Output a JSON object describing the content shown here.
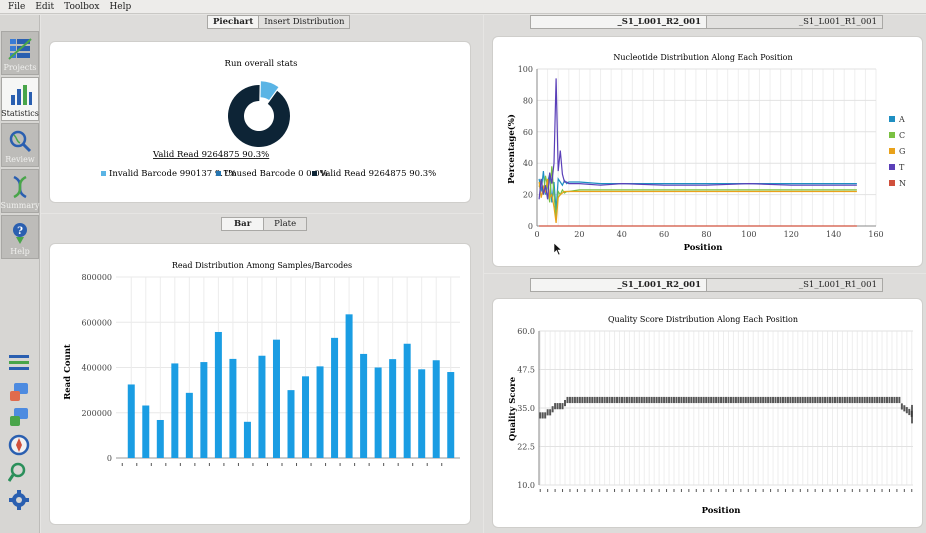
{
  "menu": [
    "File",
    "Edit",
    "Toolbox",
    "Help"
  ],
  "sidebar": {
    "buttons": [
      {
        "label": "Projects",
        "icon": "projects-icon",
        "active": false
      },
      {
        "label": "Statistics",
        "icon": "statistics-icon",
        "active": true
      },
      {
        "label": "Review",
        "icon": "review-icon",
        "active": false
      },
      {
        "label": "Summary",
        "icon": "summary-icon",
        "active": false
      },
      {
        "label": "Help",
        "icon": "help-icon",
        "active": false
      }
    ],
    "tools": [
      "list-icon",
      "tag-icon",
      "tag-edit-icon",
      "compass-icon",
      "magnifier-icon",
      "settings-icon"
    ]
  },
  "top_left": {
    "tabs": [
      {
        "label": "Piechart",
        "active": true
      },
      {
        "label": "Insert Distribution",
        "active": false
      }
    ],
    "title": "Run overall stats",
    "center_label": "Valid Read 9264875 90.3%",
    "legend": [
      {
        "label": "Invalid Barcode 990137 9.7%",
        "color": "#5ab4e5"
      },
      {
        "label": "Unused Barcode 0 0.0%",
        "color": "#2675b0"
      },
      {
        "label": "Valid Read 9264875 90.3%",
        "color": "#0d2436"
      }
    ]
  },
  "bottom_left": {
    "tabs": [
      {
        "label": "Bar",
        "active": true
      },
      {
        "label": "Plate",
        "active": false
      }
    ]
  },
  "top_right": {
    "tabs": [
      {
        "label": "_S1_L001_R2_001",
        "active": true
      },
      {
        "label": "_S1_L001_R1_001",
        "active": false
      }
    ]
  },
  "bottom_right": {
    "tabs": [
      {
        "label": "_S1_L001_R2_001",
        "active": true
      },
      {
        "label": "_S1_L001_R1_001",
        "active": false
      }
    ]
  },
  "colors": {
    "bar": "#1a9de3",
    "panel_bg": "#dddcda"
  },
  "chart_data": [
    {
      "type": "pie",
      "title": "Run overall stats",
      "categories": [
        "Invalid Barcode",
        "Unused Barcode",
        "Valid Read"
      ],
      "values": [
        990137,
        0,
        9264875
      ],
      "percent": [
        9.7,
        0.0,
        90.3
      ]
    },
    {
      "type": "line",
      "title": "Nucleotide Distribution Along Each Position",
      "xlabel": "Position",
      "ylabel": "Percentage(%)",
      "xlim": [
        0,
        160
      ],
      "ylim": [
        0,
        100
      ],
      "xticks": [
        0,
        20,
        40,
        60,
        80,
        100,
        120,
        140,
        160
      ],
      "yticks": [
        0,
        20,
        40,
        60,
        80,
        100
      ],
      "legend_position": "right",
      "x": [
        1,
        2,
        3,
        4,
        5,
        6,
        7,
        8,
        9,
        10,
        11,
        12,
        13,
        14,
        15,
        20,
        30,
        40,
        60,
        80,
        100,
        120,
        140,
        151
      ],
      "series": [
        {
          "name": "A",
          "color": "#1f8fc2",
          "values": [
            30,
            22,
            35,
            20,
            28,
            33,
            15,
            28,
            10,
            30,
            28,
            26,
            29,
            27,
            28,
            28,
            27,
            27,
            27,
            27,
            27,
            27,
            27,
            27
          ]
        },
        {
          "name": "C",
          "color": "#7ac142",
          "values": [
            25,
            30,
            20,
            32,
            25,
            15,
            38,
            20,
            5,
            22,
            20,
            23,
            21,
            22,
            22,
            23,
            23,
            23,
            23,
            23,
            23,
            23,
            23,
            23
          ]
        },
        {
          "name": "G",
          "color": "#e9a21a",
          "values": [
            28,
            18,
            25,
            22,
            30,
            18,
            20,
            12,
            2,
            18,
            20,
            21,
            22,
            22,
            22,
            22,
            22,
            22,
            22,
            22,
            22,
            22,
            22,
            22
          ]
        },
        {
          "name": "T",
          "color": "#5a3fb8",
          "values": [
            17,
            30,
            20,
            26,
            17,
            34,
            27,
            40,
            94,
            35,
            48,
            33,
            28,
            28,
            27,
            27,
            26,
            27,
            26,
            26,
            27,
            26,
            26,
            26
          ]
        },
        {
          "name": "N",
          "color": "#d0503c",
          "values": [
            0,
            0,
            0,
            0,
            0,
            0,
            0,
            0,
            0,
            0,
            0,
            0,
            0,
            0,
            0,
            0,
            0,
            0,
            0,
            0,
            0,
            0,
            0,
            0
          ]
        }
      ]
    },
    {
      "type": "bar",
      "title": "Read Distribution Among Samples/Barcodes",
      "ylabel": "Read Count",
      "ylim": [
        0,
        800000
      ],
      "yticks": [
        0,
        200000,
        400000,
        600000,
        800000
      ],
      "values": [
        325000,
        232000,
        168000,
        418000,
        288000,
        424000,
        557000,
        438000,
        160000,
        452000,
        523000,
        300000,
        361000,
        405000,
        531000,
        635000,
        460000,
        400000,
        437000,
        505000,
        392000,
        432000,
        380000
      ]
    },
    {
      "type": "box",
      "title": "Quality Score Distribution Along Each Position",
      "xlabel": "Position",
      "ylabel": "Quality Score",
      "ylim": [
        10.0,
        60.0
      ],
      "yticks": [
        10.0,
        22.5,
        35.0,
        47.5,
        60.0
      ],
      "positions": 151,
      "median_approx": [
        33,
        33,
        33,
        34,
        34,
        35,
        36,
        36,
        36,
        36,
        37,
        38,
        38,
        38,
        38,
        38,
        38,
        38,
        38,
        38,
        38,
        38,
        38,
        38,
        38,
        38,
        38,
        38,
        38,
        38,
        38,
        38,
        38,
        38,
        38,
        38,
        38,
        38,
        38,
        38
      ]
    }
  ]
}
